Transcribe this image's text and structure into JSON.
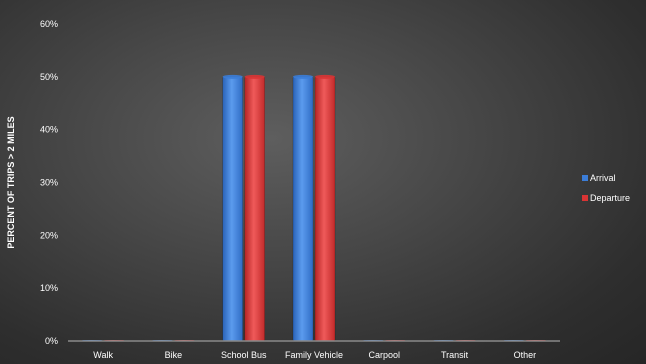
{
  "chart_data": {
    "type": "bar",
    "title": "",
    "xlabel": "",
    "ylabel": "PERCENT OF TRIPS > 2 MILES",
    "categories": [
      "Walk",
      "Bike",
      "School Bus",
      "Family Vehicle",
      "Carpool",
      "Transit",
      "Other"
    ],
    "series": [
      {
        "name": "Arrival",
        "values": [
          0,
          0,
          50,
          50,
          0,
          0,
          0
        ],
        "color": "#3b7dd8"
      },
      {
        "name": "Departure",
        "values": [
          0,
          0,
          50,
          50,
          0,
          0,
          0
        ],
        "color": "#d93434"
      }
    ],
    "ylim": [
      0,
      60
    ],
    "yticks": [
      0,
      10,
      20,
      30,
      40,
      50,
      60
    ],
    "ytick_labels": [
      "0%",
      "10%",
      "20%",
      "30%",
      "40%",
      "50%",
      "60%"
    ],
    "grid": false,
    "legend_position": "right",
    "background": "#3a3a3a"
  }
}
